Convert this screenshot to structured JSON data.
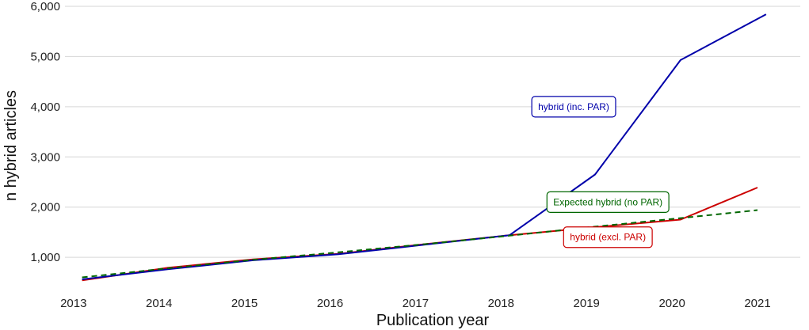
{
  "chart_data": {
    "type": "line",
    "xlabel": "Publication year",
    "ylabel": "n hybrid articles",
    "xlim": [
      2012.9,
      2021.5
    ],
    "ylim": [
      450,
      6000
    ],
    "x_ticks": [
      2013,
      2014,
      2015,
      2016,
      2017,
      2018,
      2019,
      2020,
      2021
    ],
    "y_ticks": [
      1000,
      2000,
      3000,
      4000,
      5000,
      6000
    ],
    "y_tick_labels": [
      "1,000",
      "2,000",
      "3,000",
      "4,000",
      "5,000",
      "6,000"
    ],
    "grid": "horizontal",
    "series": [
      {
        "label": "hybrid (excl. PAR)",
        "color": "#cc0000",
        "dash": "solid",
        "x": [
          2013.1,
          2014.1,
          2015.1,
          2016.1,
          2017.1,
          2018.1,
          2019.1,
          2020.1,
          2021.0
        ],
        "y": [
          540,
          790,
          960,
          1070,
          1260,
          1440,
          1600,
          1750,
          2390
        ]
      },
      {
        "label": "hybrid (inc. PAR)",
        "color": "#0000aa",
        "dash": "solid",
        "x": [
          2013.1,
          2014.1,
          2015.1,
          2016.1,
          2017.1,
          2018.1,
          2019.1,
          2020.1,
          2021.1
        ],
        "y": [
          560,
          760,
          940,
          1060,
          1250,
          1440,
          2650,
          4930,
          5840
        ]
      },
      {
        "label": "Expected hybrid (no PAR)",
        "color": "#006600",
        "dash": "dashed",
        "x": [
          2013.1,
          2014.1,
          2015.1,
          2016.1,
          2017.1,
          2018.1,
          2019.1,
          2020.1,
          2021.0
        ],
        "y": [
          600,
          780,
          950,
          1100,
          1260,
          1430,
          1610,
          1780,
          1940
        ]
      }
    ],
    "annotations": [
      {
        "text": "hybrid (inc. PAR)",
        "color": "#0000aa",
        "x": 2018.85,
        "y": 4000
      },
      {
        "text": "Expected hybrid (no PAR)",
        "color": "#006600",
        "x": 2019.25,
        "y": 2100
      },
      {
        "text": "hybrid (excl. PAR)",
        "color": "#cc0000",
        "x": 2019.25,
        "y": 1400
      }
    ]
  }
}
